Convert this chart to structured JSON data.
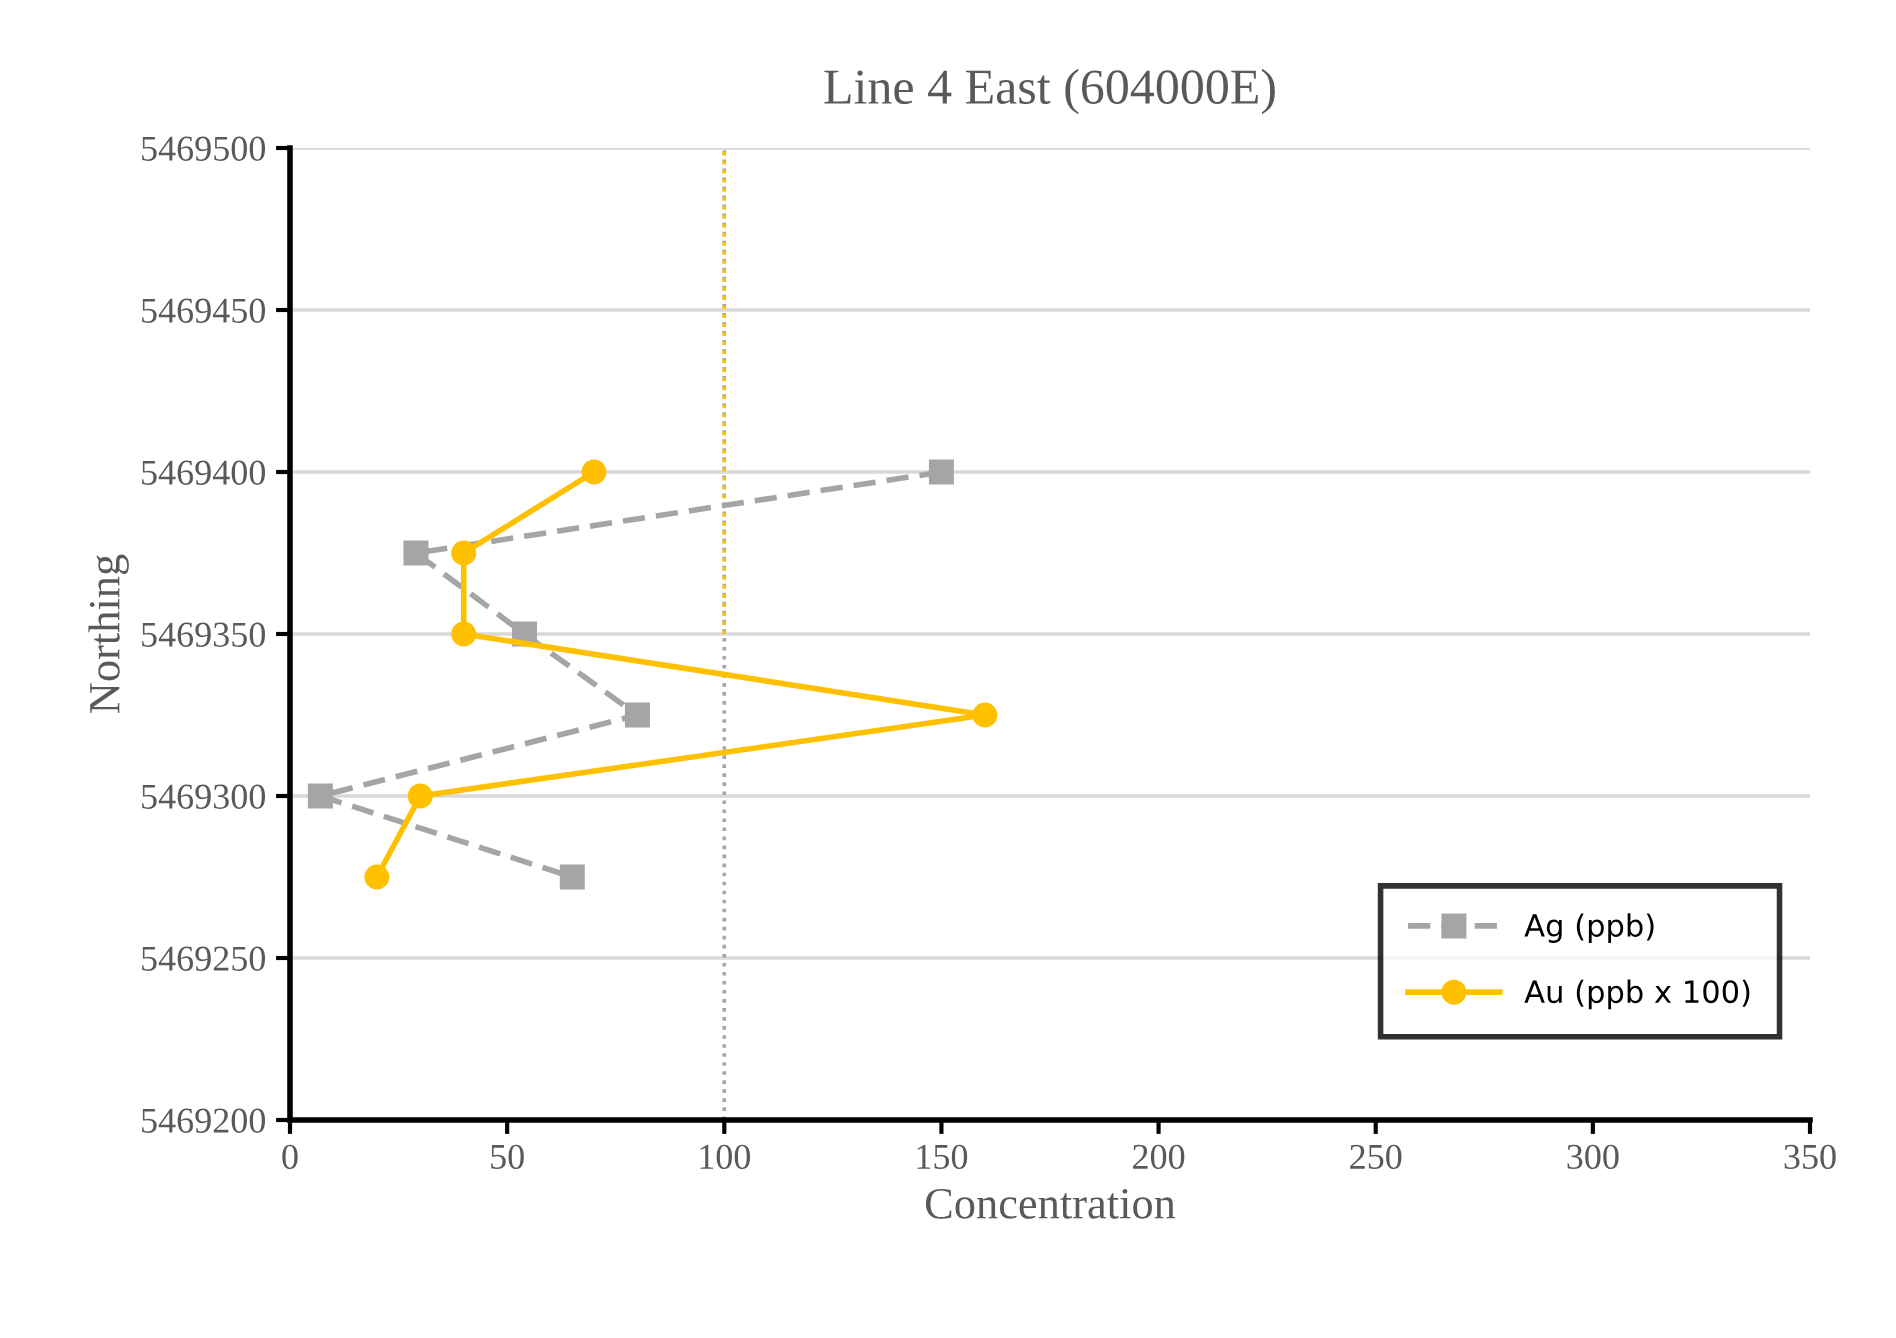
{
  "chart_data": {
    "type": "line",
    "title": "Line 4 East (604000E)",
    "xlabel": "Concentration",
    "ylabel": "Northing",
    "xlim": [
      0,
      350
    ],
    "xticks": [
      0,
      50,
      100,
      150,
      200,
      250,
      300,
      350
    ],
    "ylim": [
      5469200,
      5469500
    ],
    "yticks": [
      5469200,
      5469250,
      5469300,
      5469350,
      5469400,
      5469450,
      5469500
    ],
    "grid": "y",
    "legend": "bottom right",
    "series": [
      {
        "name": "Ag (ppb)",
        "color": "#a5a5a5",
        "marker": "square",
        "line_style": "dashed",
        "x": [
          150,
          29,
          54,
          80,
          7,
          65
        ],
        "values": [
          5469400,
          5469375,
          5469350,
          5469325,
          5469300,
          5469275
        ]
      },
      {
        "name": "Au (ppb x 100)",
        "color": "#ffc000",
        "marker": "circle",
        "line_style": "solid",
        "x": [
          70,
          40,
          40,
          160,
          30,
          20
        ],
        "values": [
          5469400,
          5469375,
          5469350,
          5469325,
          5469300,
          5469275
        ]
      },
      {
        "color": "#a5a5a5",
        "marker": "none",
        "line_style": "dotted",
        "x": [
          100,
          100
        ],
        "values": [
          5469200,
          5469500
        ]
      },
      {
        "color": "#ffc000",
        "marker": "none",
        "line_style": "dotted",
        "x": [
          100,
          100
        ],
        "values": [
          5469350,
          5469500
        ]
      }
    ]
  }
}
